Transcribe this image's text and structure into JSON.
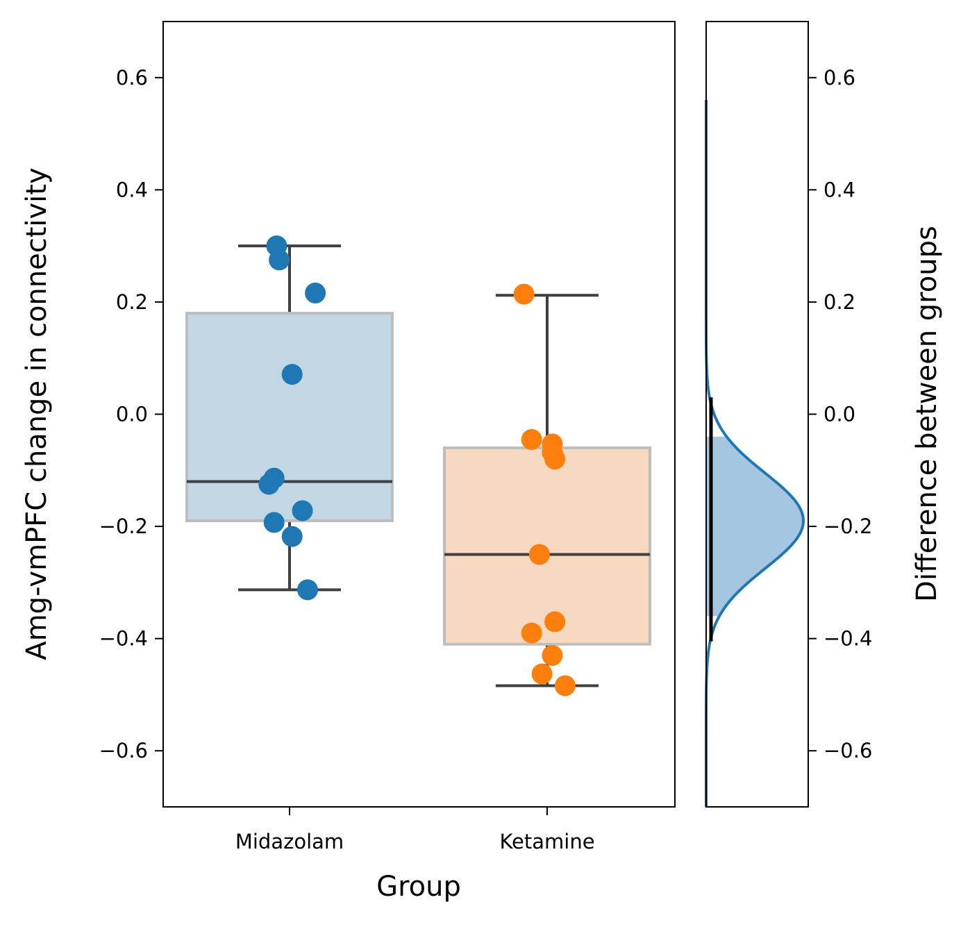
{
  "chart_data": [
    {
      "type": "box",
      "xlabel": "Group",
      "ylabel": "Amg-vmPFC change in connectivity",
      "ylim": [
        -0.7,
        0.7
      ],
      "yticks": [
        "0.6",
        "0.4",
        "0.2",
        "0.0",
        "−0.2",
        "−0.4",
        "−0.6"
      ],
      "ytick_values": [
        0.6,
        0.4,
        0.2,
        0.0,
        -0.2,
        -0.4,
        -0.6
      ],
      "categories": [
        "Midazolam",
        "Ketamine"
      ],
      "series": [
        {
          "category": "Midazolam",
          "color": "#1f77b4",
          "box_color": "#c2d6e4",
          "whisker_low": -0.313,
          "q1": -0.19,
          "median": -0.12,
          "q3": 0.18,
          "whisker_high": 0.3,
          "points": [
            {
              "jitter": -0.05,
              "y": 0.3
            },
            {
              "jitter": -0.04,
              "y": 0.275
            },
            {
              "jitter": 0.1,
              "y": 0.216
            },
            {
              "jitter": 0.01,
              "y": 0.071
            },
            {
              "jitter": -0.06,
              "y": -0.114
            },
            {
              "jitter": -0.08,
              "y": -0.125
            },
            {
              "jitter": 0.05,
              "y": -0.172
            },
            {
              "jitter": -0.06,
              "y": -0.193
            },
            {
              "jitter": 0.01,
              "y": -0.218
            },
            {
              "jitter": 0.07,
              "y": -0.313
            }
          ]
        },
        {
          "category": "Ketamine",
          "color": "#ff7f0e",
          "box_color": "#f7d8c1",
          "whisker_low": -0.484,
          "q1": -0.41,
          "median": -0.25,
          "q3": -0.06,
          "whisker_high": 0.212,
          "points": [
            {
              "jitter": -0.09,
              "y": 0.214
            },
            {
              "jitter": -0.06,
              "y": -0.045
            },
            {
              "jitter": 0.02,
              "y": -0.053
            },
            {
              "jitter": 0.02,
              "y": -0.068
            },
            {
              "jitter": 0.03,
              "y": -0.08
            },
            {
              "jitter": -0.03,
              "y": -0.25
            },
            {
              "jitter": 0.03,
              "y": -0.37
            },
            {
              "jitter": -0.06,
              "y": -0.39
            },
            {
              "jitter": 0.02,
              "y": -0.43
            },
            {
              "jitter": -0.02,
              "y": -0.463
            },
            {
              "jitter": 0.07,
              "y": -0.484
            }
          ]
        }
      ]
    },
    {
      "type": "area",
      "orientation": "horizontal-density",
      "ylabel": "Difference between groups",
      "ylim": [
        -0.7,
        0.7
      ],
      "yticks": [
        "0.6",
        "0.4",
        "0.2",
        "0.0",
        "−0.2",
        "−0.4",
        "−0.6"
      ],
      "ytick_values": [
        0.6,
        0.4,
        0.2,
        0.0,
        -0.2,
        -0.4,
        -0.6
      ],
      "line_color": "#1f77b4",
      "fill_color": "#a4c6e0",
      "distribution": {
        "mean": -0.19,
        "sd": 0.085
      },
      "interval": [
        -0.405,
        0.03
      ],
      "fill_range": [
        -0.36,
        -0.04
      ]
    }
  ]
}
